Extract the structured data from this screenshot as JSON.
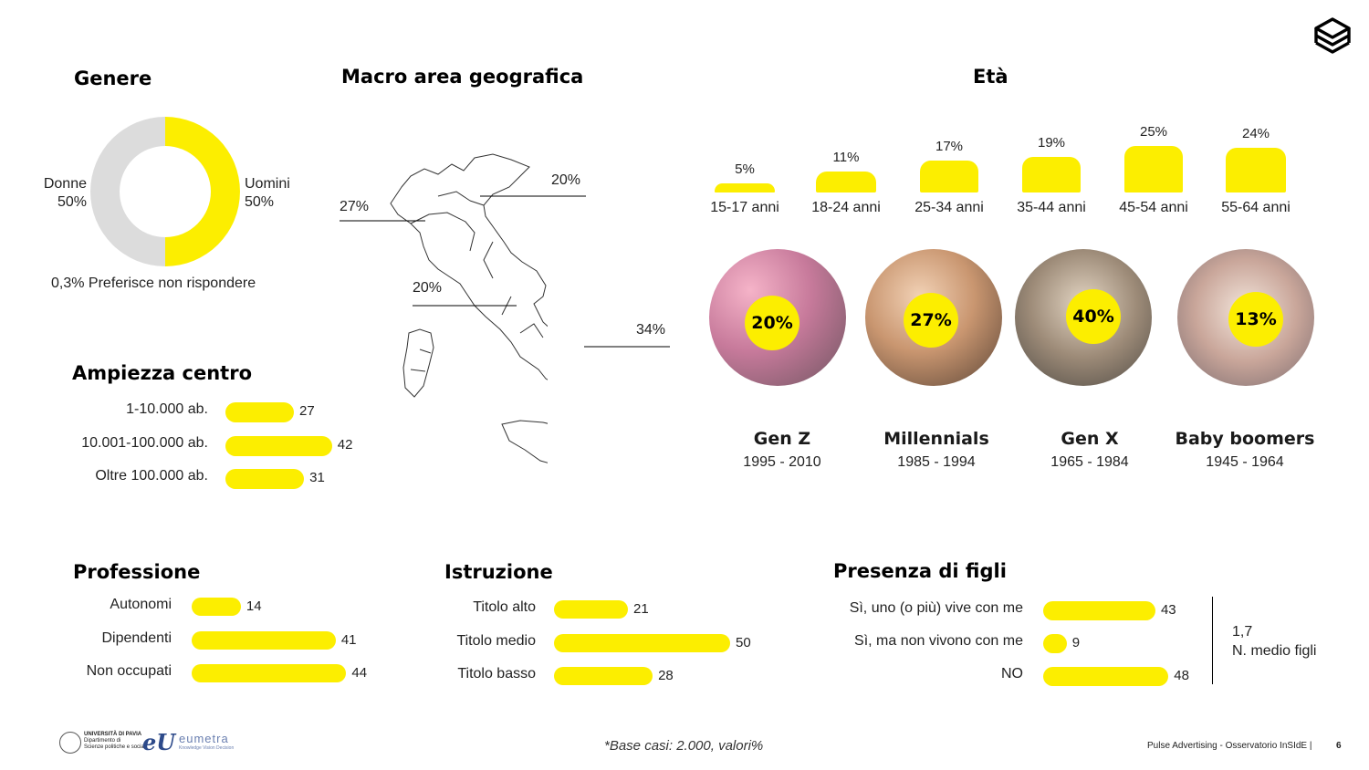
{
  "genere": {
    "title": "Genere",
    "donne_label": "Donne",
    "donne_value": "50%",
    "uomini_label": "Uomini",
    "uomini_value": "50%",
    "note": "0,3% Preferisce non rispondere"
  },
  "macro_area": {
    "title": "Macro area geografica",
    "labels": [
      "20%",
      "27%",
      "20%",
      "34%"
    ]
  },
  "eta": {
    "title": "Età",
    "categories": [
      "15-17 anni",
      "18-24  anni",
      "25-34  anni",
      "35-44  anni",
      "45-54  anni",
      "55-64  anni"
    ],
    "value_labels": [
      "5%",
      "11%",
      "17%",
      "19%",
      "25%",
      "24%"
    ]
  },
  "generations": [
    {
      "pct": "20%",
      "name": "Gen Z",
      "years": "1995 - 2010"
    },
    {
      "pct": "27%",
      "name": "Millennials",
      "years": "1985 - 1994"
    },
    {
      "pct": "40%",
      "name": "Gen X",
      "years": "1965 - 1984"
    },
    {
      "pct": "13%",
      "name": "Baby boomers",
      "years": "1945 - 1964"
    }
  ],
  "ampiezza": {
    "title": "Ampiezza centro",
    "categories": [
      "1-10.000 ab.",
      "10.001-100.000 ab.",
      "Oltre 100.000 ab."
    ],
    "values": [
      27,
      42,
      31
    ]
  },
  "professione": {
    "title": "Professione",
    "categories": [
      "Autonomi",
      "Dipendenti",
      "Non occupati"
    ],
    "values": [
      14,
      41,
      44
    ]
  },
  "istruzione": {
    "title": "Istruzione",
    "categories": [
      "Titolo alto",
      "Titolo medio",
      "Titolo basso"
    ],
    "values": [
      21,
      50,
      28
    ]
  },
  "figli": {
    "title": "Presenza di figli",
    "categories": [
      "Sì, uno (o più) vive con me",
      "Sì, ma non vivono con me",
      "NO"
    ],
    "values": [
      43,
      9,
      48
    ],
    "media_value": "1,7",
    "media_label": "N. medio figli"
  },
  "footer": {
    "base": "*Base casi: 2.000, valori%",
    "source": "Pulse Advertising - Osservatorio InSIdE |",
    "page": "6",
    "unipv_line1": "UNIVERSITÀ DI PAVIA",
    "unipv_line2": "Dipartimento di",
    "unipv_line3": "Scienze politiche e sociali",
    "eumetra": "eumetra",
    "eumetra_sub": "Knowledge Vision Decision"
  },
  "colors": {
    "accent": "#fcee00",
    "neutral": "#dcdcdc",
    "text": "#222222"
  },
  "chart_data": [
    {
      "type": "pie",
      "title": "Genere",
      "categories": [
        "Donne",
        "Uomini"
      ],
      "values": [
        50,
        50
      ]
    },
    {
      "type": "bar",
      "title": "Età",
      "categories": [
        "15-17 anni",
        "18-24 anni",
        "25-34 anni",
        "35-44 anni",
        "45-54 anni",
        "55-64 anni"
      ],
      "values": [
        5,
        11,
        17,
        19,
        25,
        24
      ]
    },
    {
      "type": "bar",
      "title": "Ampiezza centro",
      "categories": [
        "1-10.000 ab.",
        "10.001-100.000 ab.",
        "Oltre 100.000 ab."
      ],
      "values": [
        27,
        42,
        31
      ]
    },
    {
      "type": "bar",
      "title": "Professione",
      "categories": [
        "Autonomi",
        "Dipendenti",
        "Non occupati"
      ],
      "values": [
        14,
        41,
        44
      ]
    },
    {
      "type": "bar",
      "title": "Istruzione",
      "categories": [
        "Titolo alto",
        "Titolo medio",
        "Titolo basso"
      ],
      "values": [
        21,
        50,
        28
      ]
    },
    {
      "type": "bar",
      "title": "Presenza di figli",
      "categories": [
        "Sì, uno (o più) vive con me",
        "Sì, ma non vivono con me",
        "NO"
      ],
      "values": [
        43,
        9,
        48
      ]
    }
  ]
}
